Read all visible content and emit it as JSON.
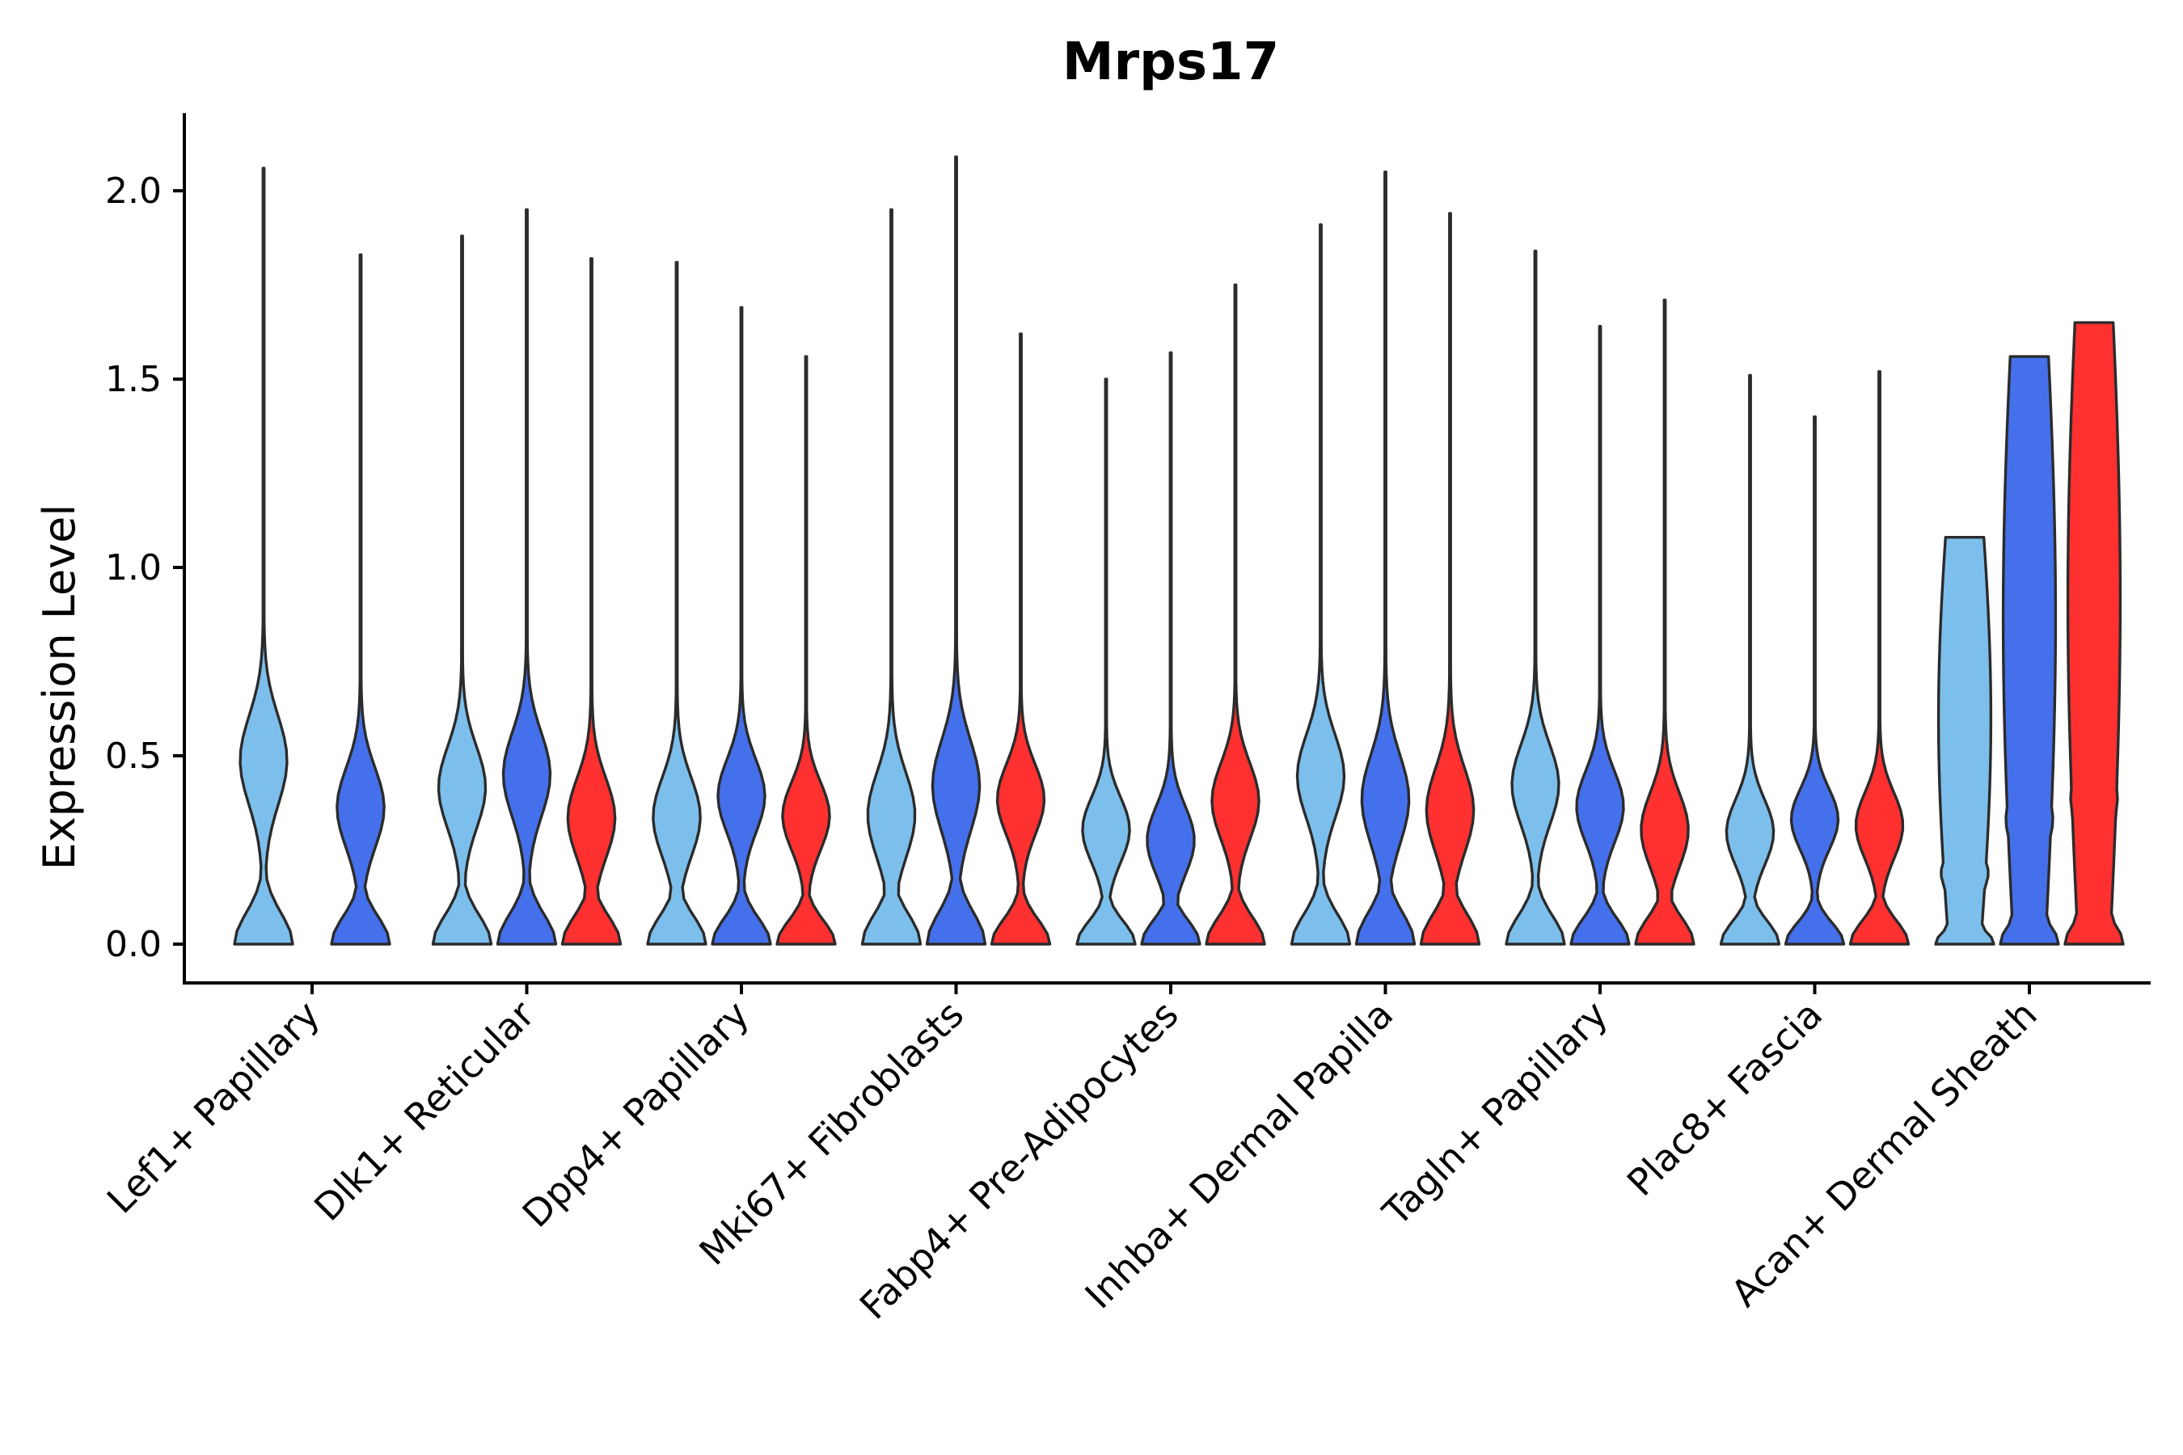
{
  "chart_data": {
    "type": "violin",
    "title": "Mrps17",
    "xlabel": "",
    "ylabel": "Expression Level",
    "ylim": [
      -0.1,
      2.2
    ],
    "yticks": [
      0.0,
      0.5,
      1.0,
      1.5,
      2.0
    ],
    "ytick_labels": [
      "0.0",
      "0.5",
      "1.0",
      "1.5",
      "2.0"
    ],
    "grid": false,
    "legend": "none",
    "categories": [
      "Lef1+ Papillary",
      "Dlk1+ Reticular",
      "Dpp4+ Papillary",
      "Mki67+ Fibroblasts",
      "Fabp4+ Pre-Adipocytes",
      "Inhba+ Dermal Papilla",
      "Tagln+ Papillary",
      "Plac8+ Fascia",
      "Acan+ Dermal Sheath"
    ],
    "series": [
      {
        "name": "light-blue group",
        "color": "#7dbfec",
        "max_values": [
          2.06,
          1.88,
          1.81,
          1.95,
          1.5,
          1.91,
          1.84,
          1.51,
          1.08
        ]
      },
      {
        "name": "blue group",
        "color": "#4570eb",
        "max_values": [
          1.83,
          1.95,
          1.69,
          2.09,
          1.57,
          2.05,
          1.64,
          1.4,
          1.56
        ]
      },
      {
        "name": "red group",
        "color": "#ff3030",
        "max_values": [
          null,
          1.82,
          1.56,
          1.62,
          1.75,
          1.94,
          1.71,
          1.52,
          1.65
        ]
      }
    ]
  }
}
